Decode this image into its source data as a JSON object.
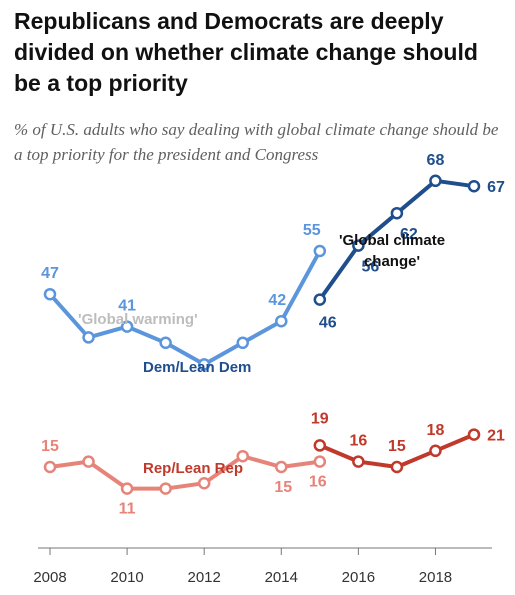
{
  "title": "Republicans and Democrats are deeply divided on whether climate change should be a top priority",
  "subtitle": "% of U.S. adults who say dealing with global climate change should be a top priority for the president and Congress",
  "chart_data": {
    "type": "line",
    "x_ticks": [
      2008,
      2010,
      2012,
      2014,
      2016,
      2018
    ],
    "xlim": [
      2008,
      2019
    ],
    "ylim": [
      0,
      75
    ],
    "annotations": {
      "global_warming": "'Global warming'",
      "global_climate_change": [
        "'Global climate",
        "change'"
      ]
    },
    "series": [
      {
        "name": "Dem/Lean Dem",
        "party": "dem",
        "wording": "global warming",
        "color": "#5b95dc",
        "x": [
          2008,
          2009,
          2010,
          2011,
          2012,
          2013,
          2014,
          2015
        ],
        "values": [
          47,
          39,
          41,
          38,
          34,
          38,
          42,
          55
        ],
        "labels": {
          "2008": "47",
          "2010": "41",
          "2014": "42",
          "2015": "55"
        }
      },
      {
        "name": "Dem/Lean Dem",
        "party": "dem",
        "wording": "global climate change",
        "color": "#1f4e8c",
        "x": [
          2015,
          2016,
          2017,
          2018,
          2019
        ],
        "values": [
          46,
          56,
          62,
          68,
          67
        ],
        "labels": {
          "2015": "46",
          "2016": "56",
          "2017": "62",
          "2018": "68",
          "2019": "67"
        }
      },
      {
        "name": "Rep/Lean Rep",
        "party": "rep",
        "wording": "global warming",
        "color": "#e7847a",
        "x": [
          2008,
          2009,
          2010,
          2011,
          2012,
          2013,
          2014,
          2015
        ],
        "values": [
          15,
          16,
          11,
          11,
          12,
          17,
          15,
          16
        ],
        "labels": {
          "2008": "15",
          "2010": "11",
          "2014": "15",
          "2015": "16"
        }
      },
      {
        "name": "Rep/Lean Rep",
        "party": "rep",
        "wording": "global climate change",
        "color": "#c0392b",
        "x": [
          2015,
          2016,
          2017,
          2018,
          2019
        ],
        "values": [
          19,
          16,
          15,
          18,
          21
        ],
        "labels": {
          "2015": "19",
          "2016": "16",
          "2017": "15",
          "2018": "18",
          "2019": "21"
        }
      }
    ]
  }
}
